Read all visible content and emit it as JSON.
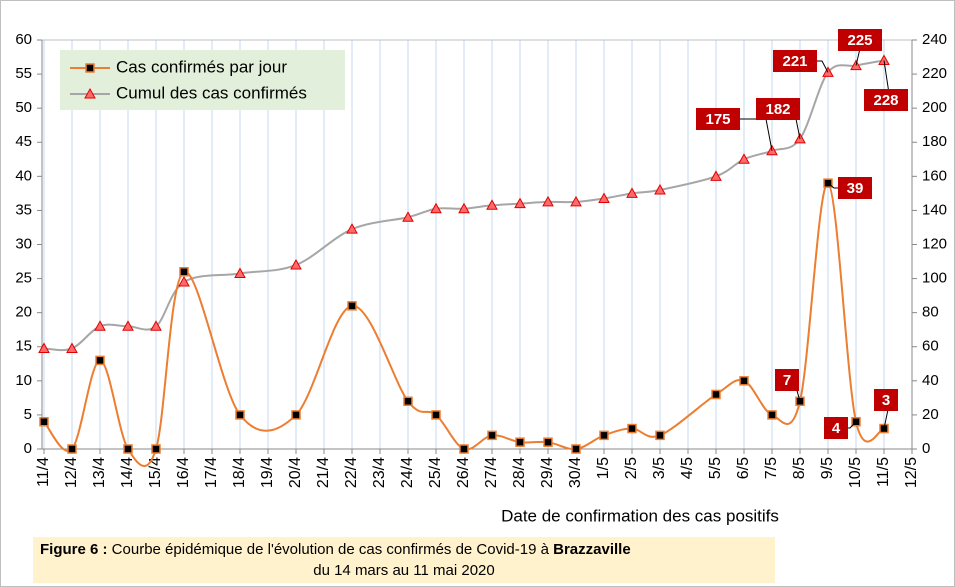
{
  "chart_data": {
    "type": "line",
    "categories": [
      "11/4",
      "12/4",
      "13/4",
      "14/4",
      "15/4",
      "16/4",
      "17/4",
      "18/4",
      "19/4",
      "20/4",
      "21/4",
      "22/4",
      "23/4",
      "24/4",
      "25/4",
      "26/4",
      "27/4",
      "28/4",
      "29/4",
      "30/4",
      "1/5",
      "2/5",
      "3/5",
      "4/5",
      "5/5",
      "6/5",
      "7/5",
      "8/5",
      "9/5",
      "10/5",
      "11/5",
      "12/5"
    ],
    "series": [
      {
        "name": "Cas confirmés par jour",
        "color": "#ed7d31",
        "axis": "y",
        "x": [
          "11/4",
          "12/4",
          "13/4",
          "14/4",
          "15/4",
          "16/4",
          "18/4",
          "20/4",
          "22/4",
          "24/4",
          "25/4",
          "26/4",
          "27/4",
          "28/4",
          "29/4",
          "30/4",
          "1/5",
          "2/5",
          "3/5",
          "5/5",
          "6/5",
          "7/5",
          "8/5",
          "9/5",
          "10/5",
          "11/5"
        ],
        "values": [
          4,
          0,
          13,
          0,
          0,
          26,
          5,
          5,
          21,
          7,
          5,
          0,
          2,
          1,
          1,
          0,
          2,
          3,
          2,
          8,
          10,
          5,
          7,
          39,
          4,
          3
        ]
      },
      {
        "name": "Cumul des cas confirmés",
        "color": "#a6a6a6",
        "axis": "y2",
        "x": [
          "11/4",
          "12/4",
          "13/4",
          "14/4",
          "15/4",
          "16/4",
          "18/4",
          "20/4",
          "22/4",
          "24/4",
          "25/4",
          "26/4",
          "27/4",
          "28/4",
          "29/4",
          "30/4",
          "1/5",
          "2/5",
          "3/5",
          "5/5",
          "6/5",
          "7/5",
          "8/5",
          "9/5",
          "10/5",
          "11/5"
        ],
        "values": [
          59,
          59,
          72,
          72,
          72,
          98,
          103,
          108,
          129,
          136,
          141,
          141,
          143,
          144,
          145,
          145,
          147,
          150,
          152,
          160,
          170,
          175,
          182,
          221,
          225,
          228
        ]
      }
    ],
    "ylim": [
      0,
      60
    ],
    "yticks": [
      0,
      5,
      10,
      15,
      20,
      25,
      30,
      35,
      40,
      45,
      50,
      55,
      60
    ],
    "y2lim": [
      0,
      240
    ],
    "y2ticks": [
      0,
      20,
      40,
      60,
      80,
      100,
      120,
      140,
      160,
      180,
      200,
      220,
      240
    ],
    "xlabel": "Date de confirmation des cas positifs",
    "grid": true,
    "legend": "upper left",
    "caption": {
      "label": "Figure 6 :",
      "text": " Courbe épidémique de l'évolution de cas confirmés de Covid-19 à ",
      "place": "Brazzaville",
      "line2": "du 14 mars au 11 mai 2020"
    }
  }
}
